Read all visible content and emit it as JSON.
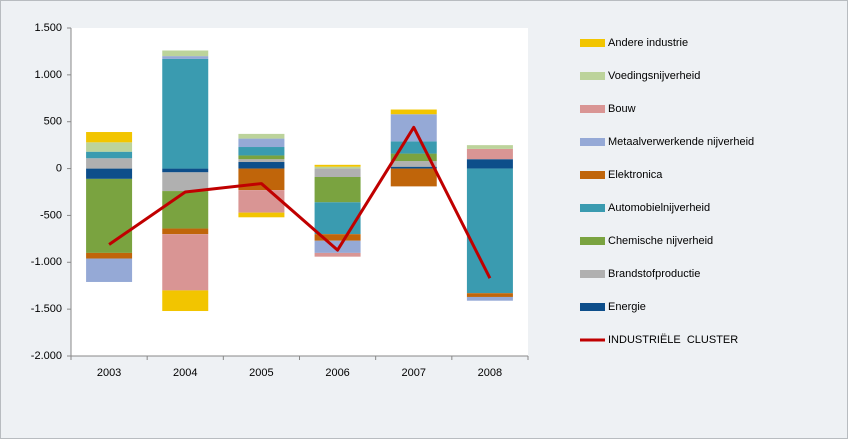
{
  "chart_data": {
    "type": "bar",
    "stacked": true,
    "categories": [
      "2003",
      "2004",
      "2005",
      "2006",
      "2007",
      "2008"
    ],
    "series": [
      {
        "name": "Andere industrie",
        "color": "#f2c500",
        "values": [
          110,
          -220,
          -50,
          20,
          50,
          0
        ]
      },
      {
        "name": "Voedingsnijverheid",
        "color": "#bcd39b",
        "values": [
          100,
          60,
          50,
          20,
          0,
          40
        ]
      },
      {
        "name": "Bouw",
        "color": "#d99594",
        "values": [
          0,
          -600,
          -240,
          -40,
          0,
          110
        ]
      },
      {
        "name": "Metaalverwerkende  nijverheid",
        "color": "#95a9d6",
        "values": [
          -250,
          30,
          90,
          -130,
          290,
          -40
        ]
      },
      {
        "name": "Elektronica",
        "color": "#c0650a",
        "values": [
          -60,
          -60,
          -230,
          -70,
          -190,
          -40
        ]
      },
      {
        "name": "Automobielnijverheid",
        "color": "#3a9bb0",
        "values": [
          70,
          1170,
          90,
          -340,
          130,
          -1330
        ]
      },
      {
        "name": "Chemische nijverheid",
        "color": "#7aa340",
        "values": [
          -790,
          -400,
          40,
          -270,
          80,
          0
        ]
      },
      {
        "name": "Brandstofproductie",
        "color": "#b0b0b0",
        "values": [
          110,
          -200,
          30,
          -90,
          60,
          0
        ]
      },
      {
        "name": "Energie",
        "color": "#0d4e8a",
        "values": [
          -110,
          -40,
          70,
          0,
          20,
          100
        ]
      }
    ],
    "line_series": {
      "name": "INDUSTRIËLE  CLUSTER",
      "color": "#c00000",
      "values": [
        -810,
        -250,
        -160,
        -870,
        440,
        -1170
      ]
    },
    "ylim": [
      -2000,
      1500
    ],
    "yticks": [
      {
        "value": -2000,
        "label": "-2.000"
      },
      {
        "value": -1500,
        "label": "-1.500"
      },
      {
        "value": -1000,
        "label": "-1.000"
      },
      -500,
      0,
      500,
      {
        "value": 1000,
        "label": "1.000"
      },
      {
        "value": 1500,
        "label": "1.500"
      }
    ],
    "legend": "right"
  }
}
